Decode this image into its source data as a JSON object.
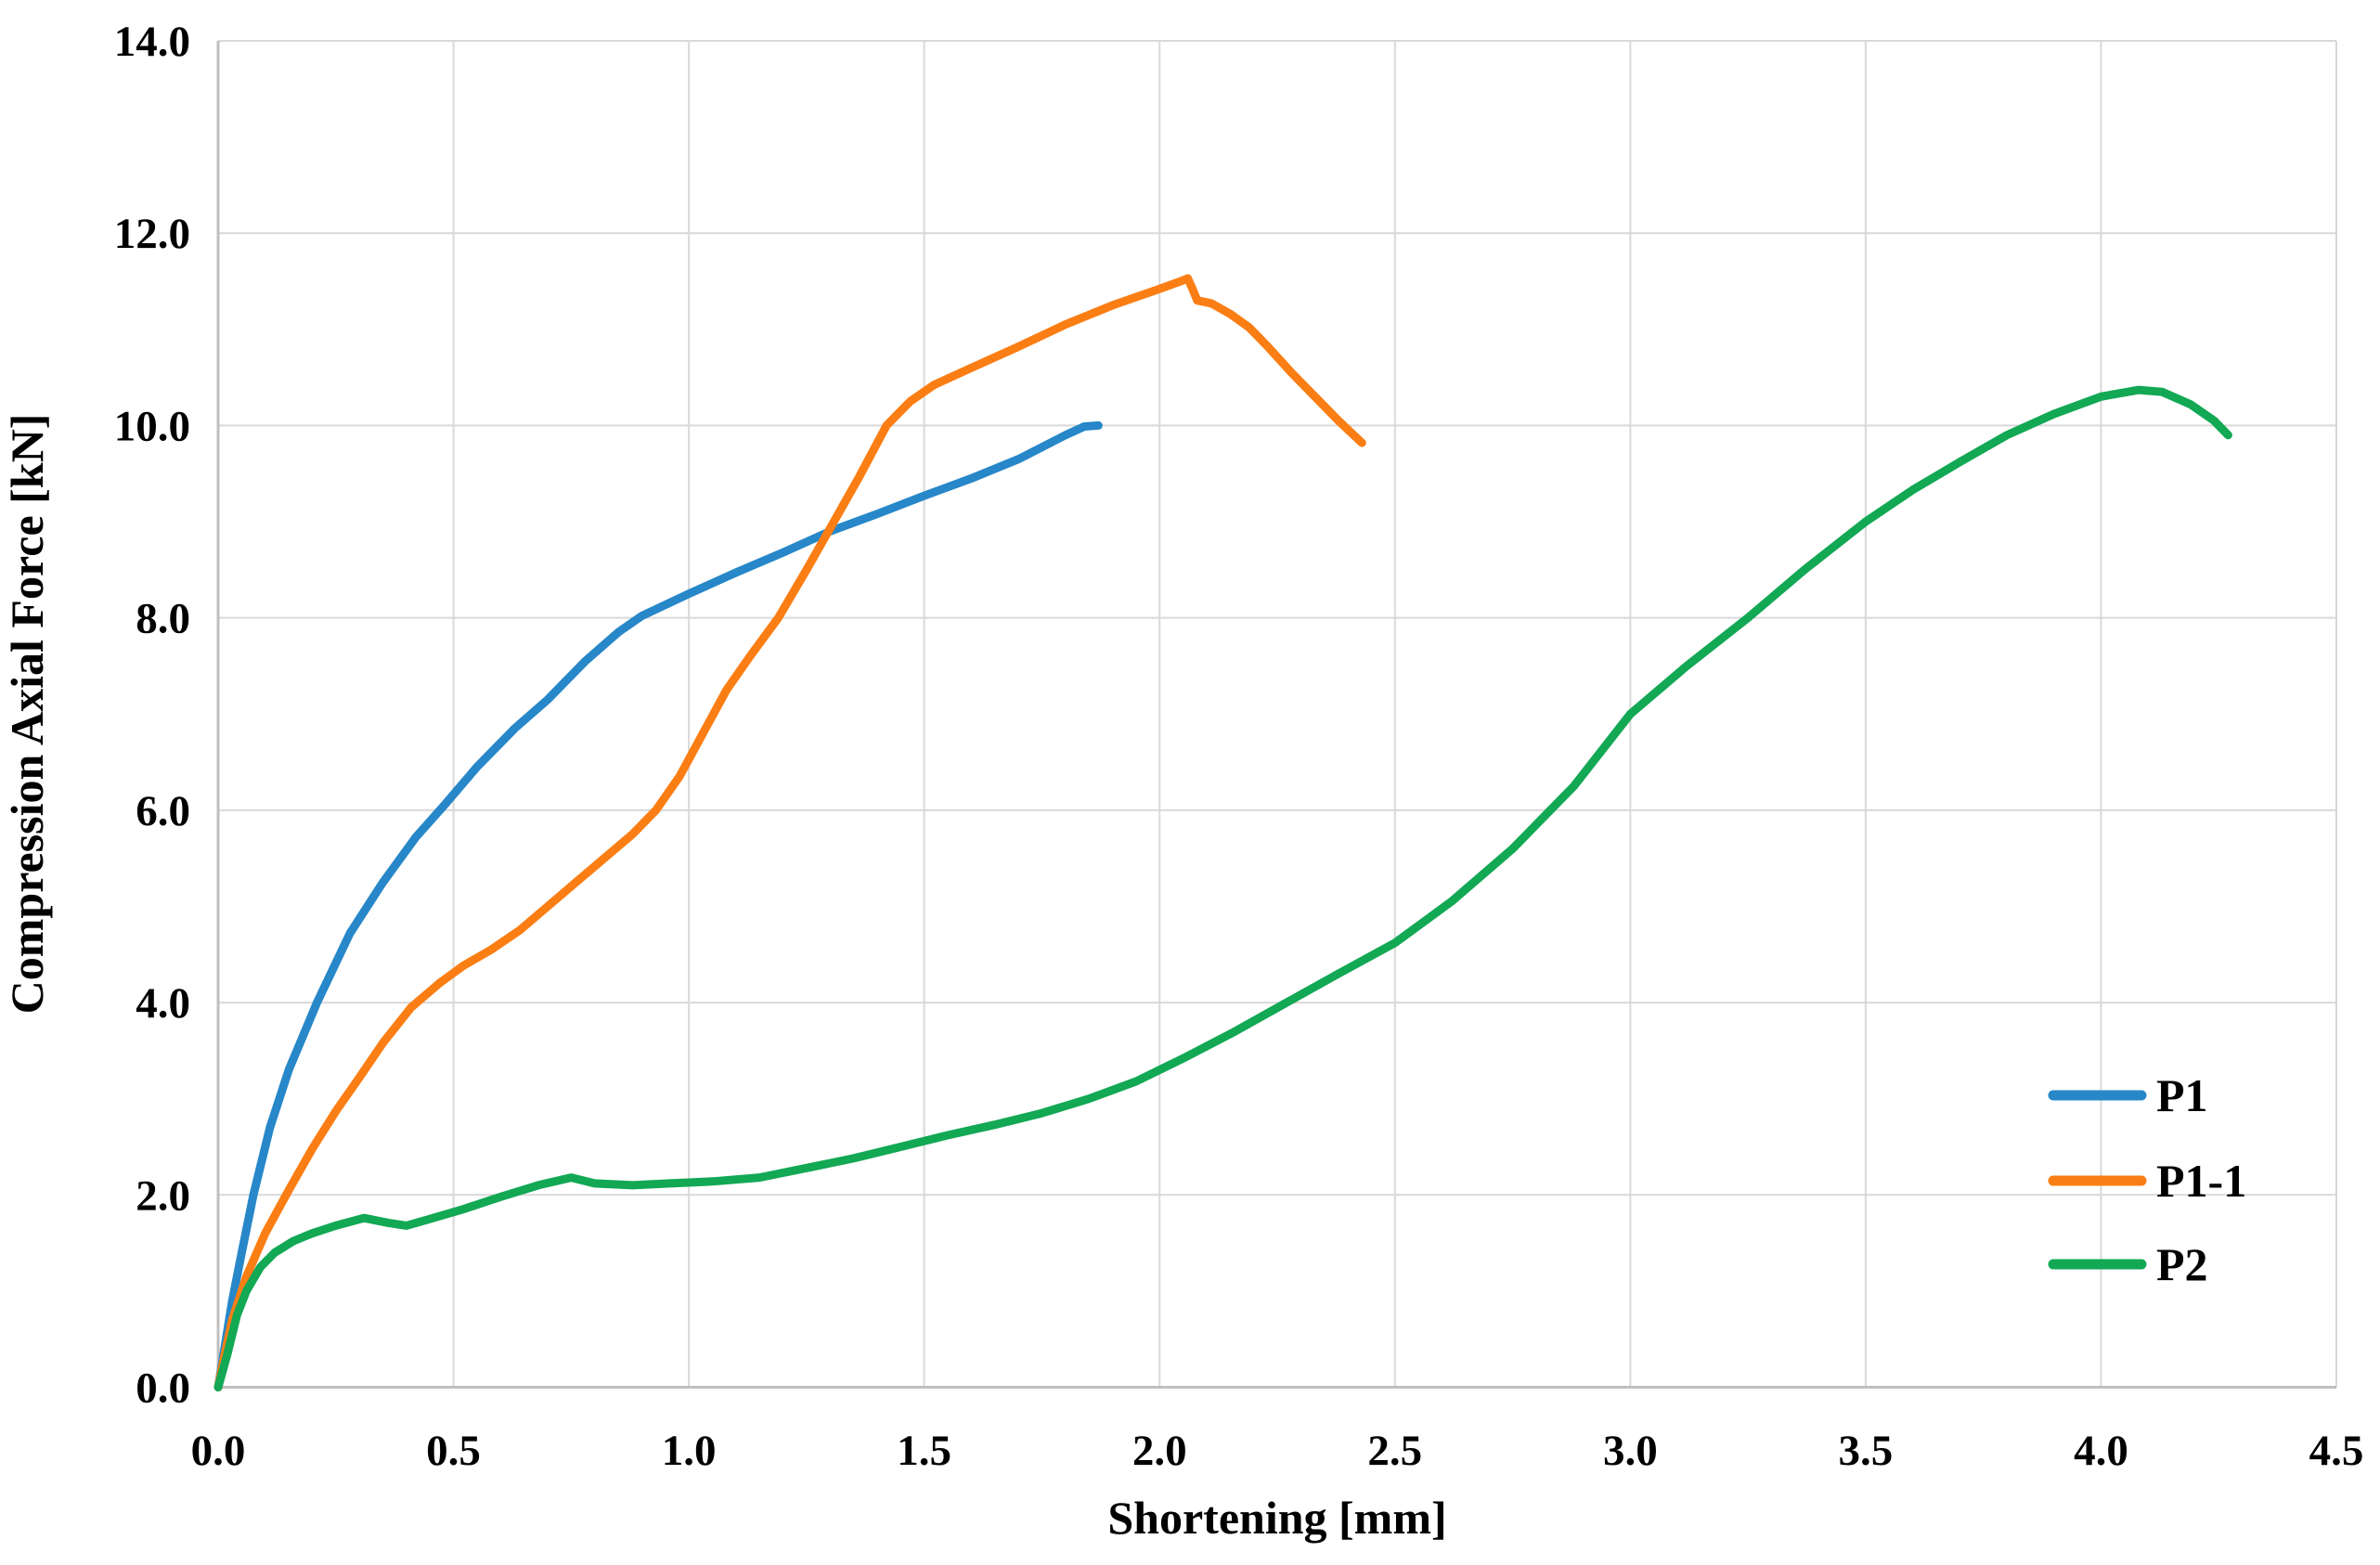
{
  "chart_data": {
    "type": "line",
    "title": "",
    "xlabel": "Shortening [mm]",
    "ylabel": "Compression Axial Force [kN]",
    "xlim": [
      0.0,
      4.5
    ],
    "ylim": [
      0.0,
      14.0
    ],
    "x_ticks": [
      0.0,
      0.5,
      1.0,
      1.5,
      2.0,
      2.5,
      3.0,
      3.5,
      4.0,
      4.5
    ],
    "x_tick_labels": [
      "0.0",
      "0.5",
      "1.0",
      "1.5",
      "2.0",
      "2.5",
      "3.0",
      "3.5",
      "4.0",
      "4.5"
    ],
    "y_ticks": [
      0.0,
      2.0,
      4.0,
      6.0,
      8.0,
      10.0,
      12.0,
      14.0
    ],
    "y_tick_labels": [
      "0.0",
      "2.0",
      "4.0",
      "6.0",
      "8.0",
      "10.0",
      "12.0",
      "14.0"
    ],
    "grid": true,
    "legend_position": "inside-bottom-right",
    "colors": {
      "grid": "#D9D9D9",
      "axis": "#BFBFBF",
      "text": "#000000",
      "background": "#FFFFFF"
    },
    "series": [
      {
        "name": "P1",
        "color": "#2787C8",
        "points": [
          [
            0,
            0
          ],
          [
            0.01,
            0.3
          ],
          [
            0.03,
            0.9
          ],
          [
            0.05,
            1.4
          ],
          [
            0.075,
            2.0
          ],
          [
            0.11,
            2.7
          ],
          [
            0.15,
            3.3
          ],
          [
            0.21,
            4.0
          ],
          [
            0.28,
            4.72
          ],
          [
            0.35,
            5.25
          ],
          [
            0.42,
            5.72
          ],
          [
            0.48,
            6.05
          ],
          [
            0.55,
            6.45
          ],
          [
            0.63,
            6.85
          ],
          [
            0.7,
            7.15
          ],
          [
            0.78,
            7.55
          ],
          [
            0.85,
            7.85
          ],
          [
            0.9,
            8.02
          ],
          [
            1.0,
            8.25
          ],
          [
            1.1,
            8.47
          ],
          [
            1.2,
            8.68
          ],
          [
            1.3,
            8.9
          ],
          [
            1.4,
            9.08
          ],
          [
            1.5,
            9.27
          ],
          [
            1.6,
            9.45
          ],
          [
            1.7,
            9.65
          ],
          [
            1.8,
            9.9
          ],
          [
            1.84,
            9.99
          ],
          [
            1.87,
            10.0
          ]
        ]
      },
      {
        "name": "P1-1",
        "color": "#FB7E14",
        "points": [
          [
            0,
            0
          ],
          [
            0.01,
            0.25
          ],
          [
            0.03,
            0.7
          ],
          [
            0.06,
            1.15
          ],
          [
            0.1,
            1.6
          ],
          [
            0.15,
            2.05
          ],
          [
            0.2,
            2.48
          ],
          [
            0.25,
            2.87
          ],
          [
            0.3,
            3.22
          ],
          [
            0.35,
            3.58
          ],
          [
            0.41,
            3.95
          ],
          [
            0.47,
            4.2
          ],
          [
            0.52,
            4.38
          ],
          [
            0.58,
            4.55
          ],
          [
            0.64,
            4.75
          ],
          [
            0.7,
            5.0
          ],
          [
            0.76,
            5.25
          ],
          [
            0.82,
            5.5
          ],
          [
            0.88,
            5.75
          ],
          [
            0.93,
            6.0
          ],
          [
            0.98,
            6.35
          ],
          [
            1.03,
            6.8
          ],
          [
            1.08,
            7.25
          ],
          [
            1.13,
            7.6
          ],
          [
            1.19,
            8.0
          ],
          [
            1.25,
            8.5
          ],
          [
            1.3,
            8.93
          ],
          [
            1.36,
            9.45
          ],
          [
            1.42,
            10.0
          ],
          [
            1.47,
            10.25
          ],
          [
            1.52,
            10.42
          ],
          [
            1.6,
            10.6
          ],
          [
            1.7,
            10.82
          ],
          [
            1.8,
            11.05
          ],
          [
            1.9,
            11.25
          ],
          [
            2.0,
            11.42
          ],
          [
            2.045,
            11.5
          ],
          [
            2.06,
            11.53
          ],
          [
            2.07,
            11.42
          ],
          [
            2.08,
            11.3
          ],
          [
            2.11,
            11.27
          ],
          [
            2.15,
            11.16
          ],
          [
            2.19,
            11.02
          ],
          [
            2.23,
            10.82
          ],
          [
            2.28,
            10.55
          ],
          [
            2.33,
            10.3
          ],
          [
            2.38,
            10.05
          ],
          [
            2.43,
            9.82
          ]
        ]
      },
      {
        "name": "P2",
        "color": "#12A854",
        "points": [
          [
            0,
            0
          ],
          [
            0.02,
            0.35
          ],
          [
            0.04,
            0.75
          ],
          [
            0.06,
            1.0
          ],
          [
            0.09,
            1.25
          ],
          [
            0.12,
            1.4
          ],
          [
            0.16,
            1.52
          ],
          [
            0.2,
            1.6
          ],
          [
            0.25,
            1.68
          ],
          [
            0.31,
            1.76
          ],
          [
            0.36,
            1.71
          ],
          [
            0.4,
            1.68
          ],
          [
            0.45,
            1.75
          ],
          [
            0.52,
            1.85
          ],
          [
            0.6,
            1.98
          ],
          [
            0.68,
            2.1
          ],
          [
            0.75,
            2.18
          ],
          [
            0.8,
            2.12
          ],
          [
            0.88,
            2.1
          ],
          [
            0.96,
            2.12
          ],
          [
            1.05,
            2.14
          ],
          [
            1.15,
            2.18
          ],
          [
            1.25,
            2.28
          ],
          [
            1.35,
            2.38
          ],
          [
            1.45,
            2.5
          ],
          [
            1.55,
            2.62
          ],
          [
            1.65,
            2.73
          ],
          [
            1.75,
            2.85
          ],
          [
            1.85,
            3.0
          ],
          [
            1.95,
            3.18
          ],
          [
            2.05,
            3.42
          ],
          [
            2.16,
            3.7
          ],
          [
            2.27,
            4.0
          ],
          [
            2.38,
            4.3
          ],
          [
            2.5,
            4.62
          ],
          [
            2.62,
            5.05
          ],
          [
            2.75,
            5.6
          ],
          [
            2.88,
            6.25
          ],
          [
            3.0,
            7.0
          ],
          [
            3.12,
            7.5
          ],
          [
            3.25,
            8.0
          ],
          [
            3.37,
            8.5
          ],
          [
            3.5,
            9.0
          ],
          [
            3.6,
            9.33
          ],
          [
            3.7,
            9.62
          ],
          [
            3.8,
            9.9
          ],
          [
            3.9,
            10.12
          ],
          [
            4.0,
            10.3
          ],
          [
            4.08,
            10.37
          ],
          [
            4.13,
            10.35
          ],
          [
            4.19,
            10.22
          ],
          [
            4.24,
            10.05
          ],
          [
            4.27,
            9.9
          ]
        ]
      }
    ]
  }
}
